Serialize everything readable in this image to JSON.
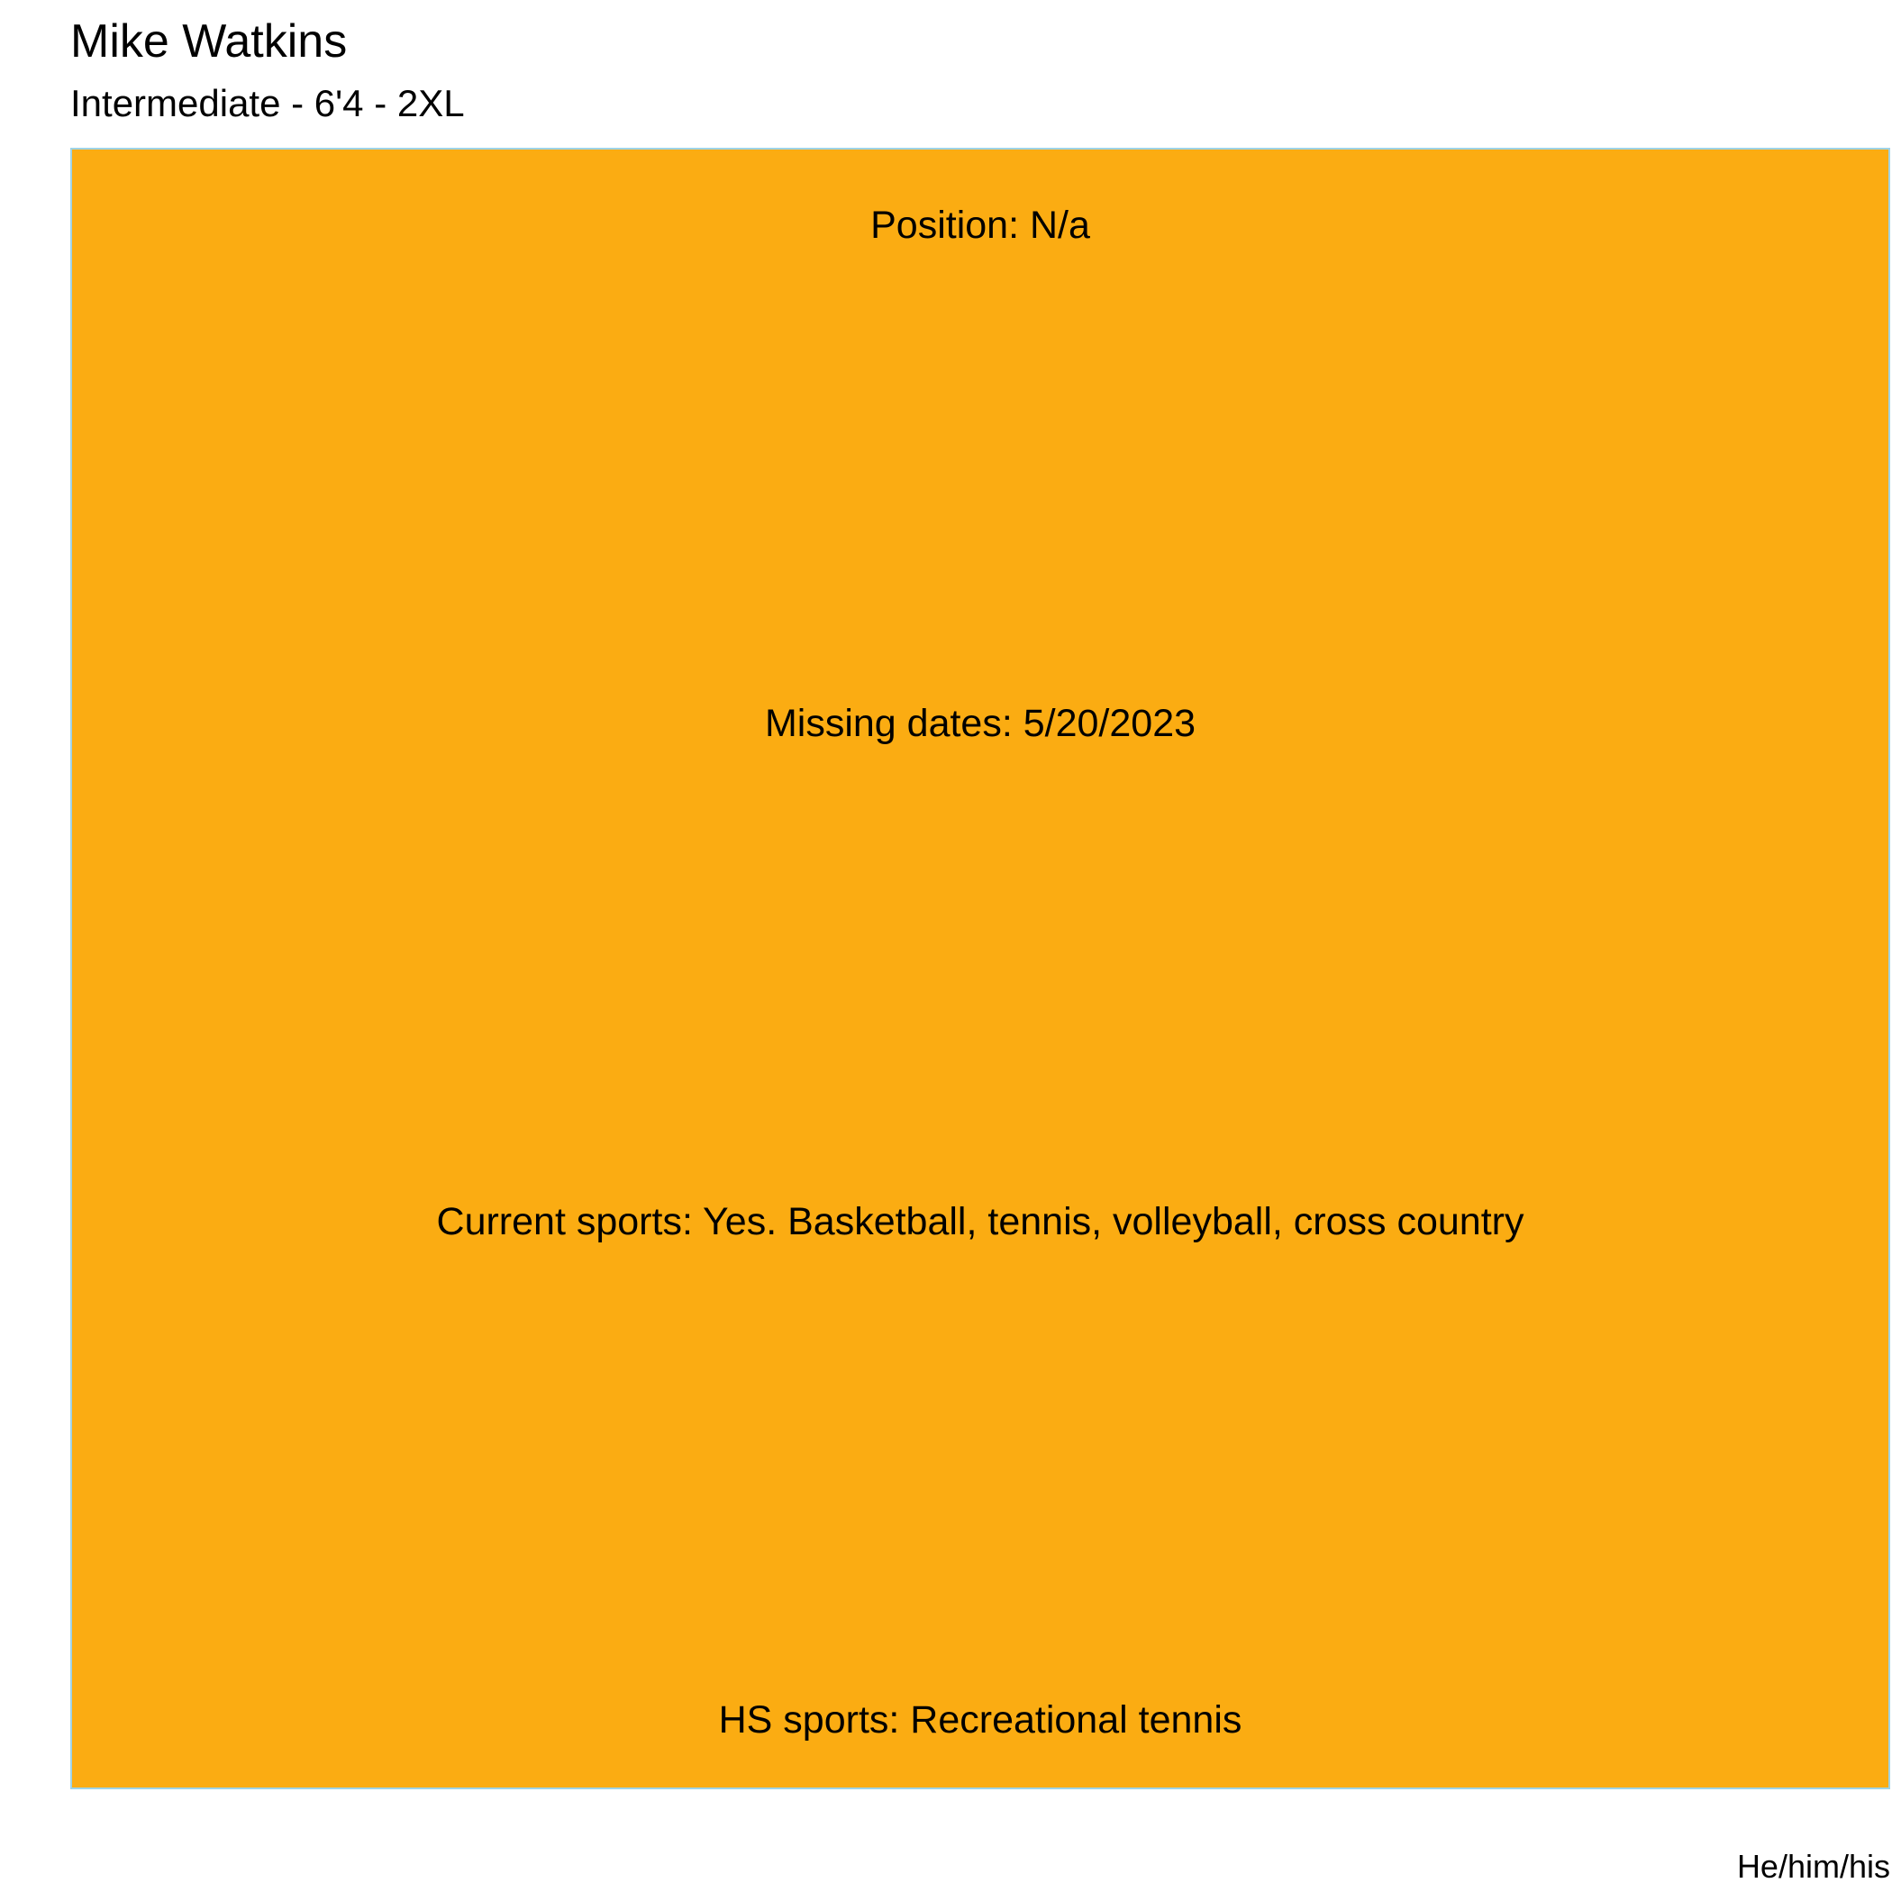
{
  "header": {
    "name": "Mike Watkins",
    "details": "Intermediate - 6'4 - 2XL"
  },
  "chart_data": {
    "type": "table",
    "fill_color": "#FBAC12",
    "border_color": "#9FD3E6",
    "rows": [
      "Position: N/a",
      "Missing dates: 5/20/2023",
      "Current sports: Yes. Basketball, tennis, volleyball, cross country",
      "HS sports: Recreational tennis"
    ]
  },
  "caption": "He/him/his"
}
